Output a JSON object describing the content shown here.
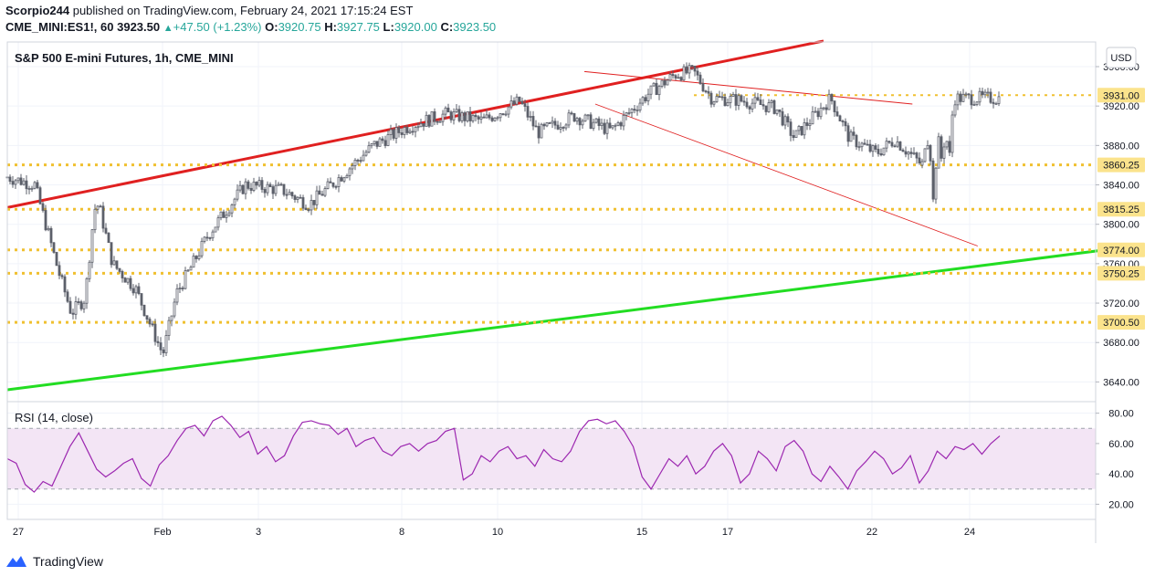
{
  "header": {
    "publisher": "Scorpio244",
    "published_text": "published on TradingView.com, February 24, 2021 17:15:24 EST",
    "symbol": "CME_MINI:ES1!, 60",
    "last": "3923.50",
    "change": "+47.50 (+1.23%)",
    "o_label": "O:",
    "o": "3920.75",
    "h_label": "H:",
    "h": "3927.75",
    "l_label": "L:",
    "l": "3920.00",
    "c_label": "C:",
    "c": "3923.50"
  },
  "footer": {
    "brand": "TradingView"
  },
  "colors": {
    "up": "#26a69a",
    "down": "#ef5350",
    "candle": "#5d606b",
    "resistance": "#e02020",
    "support": "#22dd22",
    "level": "#f0c030",
    "rsi_line": "#9c27b0",
    "rsi_band": "#f3e5f5"
  },
  "chart_data": [
    {
      "type": "candlestick",
      "title": "S&P 500 E-mini Futures, 1h, CME_MINI",
      "currency": "USD",
      "y_ticks": [
        3640,
        3680,
        3720,
        3760,
        3800,
        3840,
        3880,
        3920,
        3960
      ],
      "ylim": [
        3620,
        3985
      ],
      "x_tick_labels": [
        "27",
        "Feb",
        "3",
        "8",
        "10",
        "15",
        "17",
        "22",
        "24"
      ],
      "horizontal_levels": [
        3931.0,
        3860.25,
        3815.25,
        3774.0,
        3750.25,
        3700.5
      ],
      "level_labels": [
        "3931.00",
        "3860.25",
        "3815.25",
        "3774.00",
        "3750.25",
        "3700.50"
      ],
      "price_path": [
        [
          0.0,
          3848
        ],
        [
          0.03,
          3840
        ],
        [
          0.045,
          3790
        ],
        [
          0.055,
          3755
        ],
        [
          0.07,
          3710
        ],
        [
          0.085,
          3725
        ],
        [
          0.095,
          3815
        ],
        [
          0.1,
          3820
        ],
        [
          0.115,
          3760
        ],
        [
          0.14,
          3735
        ],
        [
          0.16,
          3690
        ],
        [
          0.17,
          3668
        ],
        [
          0.185,
          3730
        ],
        [
          0.2,
          3755
        ],
        [
          0.22,
          3790
        ],
        [
          0.24,
          3815
        ],
        [
          0.26,
          3840
        ],
        [
          0.3,
          3835
        ],
        [
          0.33,
          3820
        ],
        [
          0.36,
          3845
        ],
        [
          0.4,
          3880
        ],
        [
          0.44,
          3900
        ],
        [
          0.48,
          3912
        ],
        [
          0.52,
          3905
        ],
        [
          0.56,
          3925
        ],
        [
          0.58,
          3893
        ],
        [
          0.62,
          3910
        ],
        [
          0.66,
          3895
        ],
        [
          0.7,
          3932
        ],
        [
          0.73,
          3952
        ],
        [
          0.75,
          3955
        ],
        [
          0.77,
          3928
        ],
        [
          0.8,
          3926
        ],
        [
          0.84,
          3918
        ],
        [
          0.86,
          3888
        ],
        [
          0.9,
          3928
        ],
        [
          0.92,
          3888
        ],
        [
          0.95,
          3872
        ],
        [
          0.97,
          3886
        ],
        [
          1.0,
          3860
        ]
      ],
      "price_path_2": [
        [
          0.0,
          3860
        ],
        [
          0.05,
          3892
        ],
        [
          0.1,
          3878
        ],
        [
          0.14,
          3822
        ],
        [
          0.2,
          3888
        ],
        [
          0.25,
          3866
        ],
        [
          0.3,
          3892
        ],
        [
          0.36,
          3866
        ],
        [
          0.4,
          3930
        ],
        [
          0.42,
          3928
        ]
      ],
      "trendlines": [
        {
          "name": "resistance",
          "from": [
            0.0,
            3817
          ],
          "to": [
            0.73,
            3986
          ]
        },
        {
          "name": "support",
          "from": [
            0.0,
            3632
          ],
          "to": [
            1.0,
            3776
          ]
        },
        {
          "name": "channel-top",
          "from": [
            0.63,
            3955
          ],
          "to": [
            0.84,
            3922
          ]
        },
        {
          "name": "channel-bottom",
          "from": [
            0.64,
            3922
          ],
          "to": [
            0.9,
            3778
          ]
        }
      ]
    },
    {
      "type": "line",
      "title": "RSI (14, close)",
      "y_ticks": [
        20,
        40,
        60,
        80
      ],
      "ylim": [
        10,
        87
      ],
      "band": [
        30,
        70
      ],
      "values": [
        50,
        47,
        33,
        28,
        35,
        32,
        45,
        58,
        67,
        55,
        43,
        38,
        42,
        47,
        50,
        37,
        32,
        46,
        52,
        62,
        70,
        72,
        65,
        75,
        78,
        72,
        64,
        68,
        53,
        58,
        48,
        52,
        65,
        74,
        75,
        73,
        72,
        66,
        70,
        58,
        62,
        64,
        55,
        52,
        58,
        60,
        55,
        60,
        62,
        68,
        70,
        36,
        40,
        52,
        48,
        55,
        58,
        50,
        52,
        45,
        56,
        50,
        48,
        55,
        68,
        75,
        76,
        73,
        75,
        68,
        58,
        38,
        30,
        40,
        50,
        45,
        52,
        40,
        45,
        55,
        60,
        52,
        34,
        40,
        55,
        50,
        42,
        58,
        62,
        55,
        40,
        35,
        45,
        38,
        30,
        42,
        48,
        55,
        50,
        40,
        44,
        52,
        34,
        42,
        55,
        50,
        58,
        56,
        60,
        53,
        60,
        65
      ]
    }
  ]
}
